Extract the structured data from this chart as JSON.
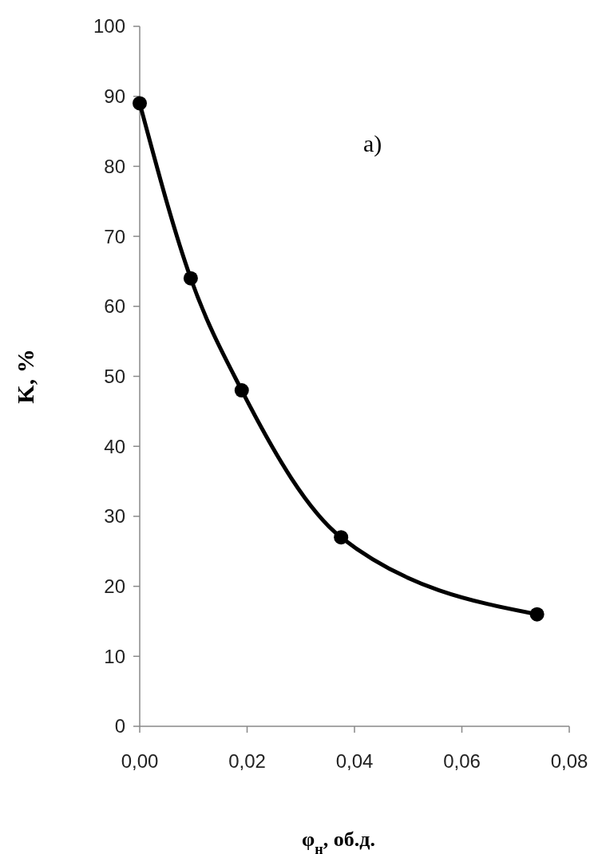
{
  "chart_data": {
    "type": "line",
    "xlabel": "φ$_{н}$, об.д.",
    "ylabel": "K, %",
    "x": [
      0,
      0.0095,
      0.019,
      0.0375,
      0.074
    ],
    "series": [
      {
        "color": "#000000",
        "values": [
          89,
          64,
          48,
          27,
          16
        ]
      }
    ],
    "xlim": [
      0,
      0.08
    ],
    "xticks": [
      {
        "value": 0,
        "label": "0,00"
      },
      {
        "value": 0.02,
        "label": "0,02"
      },
      {
        "value": 0.04,
        "label": "0,04"
      },
      {
        "value": 0.06,
        "label": "0,06"
      },
      {
        "value": 0.08,
        "label": "0,08"
      }
    ],
    "ylim": [
      0,
      100
    ],
    "yticks": [
      0,
      10,
      20,
      30,
      40,
      50,
      60,
      70,
      80,
      90,
      100
    ],
    "annotations": [
      "a)"
    ],
    "marker": "circle",
    "line_style": "solid"
  }
}
